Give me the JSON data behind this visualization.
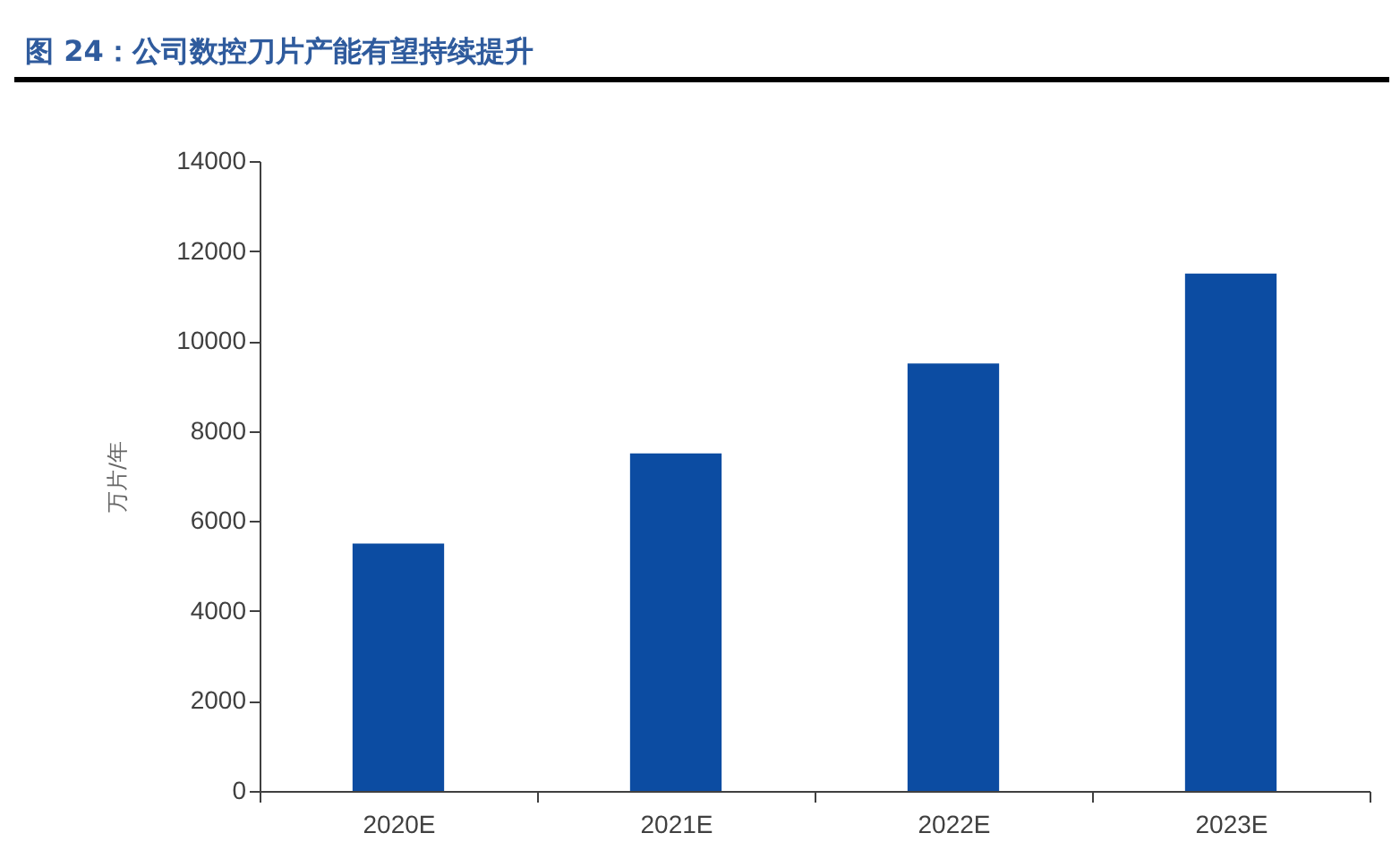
{
  "chart_data": {
    "type": "bar",
    "title": "图 24：公司数控刀片产能有望持续提升",
    "ylabel": "万片/年",
    "categories": [
      "2020E",
      "2021E",
      "2022E",
      "2023E"
    ],
    "values": [
      5500,
      7500,
      9500,
      11500
    ],
    "color": "#0c4ca2",
    "ylim": [
      0,
      14000
    ],
    "yticks": [
      0,
      2000,
      4000,
      6000,
      8000,
      10000,
      12000,
      14000
    ],
    "grid": false
  }
}
